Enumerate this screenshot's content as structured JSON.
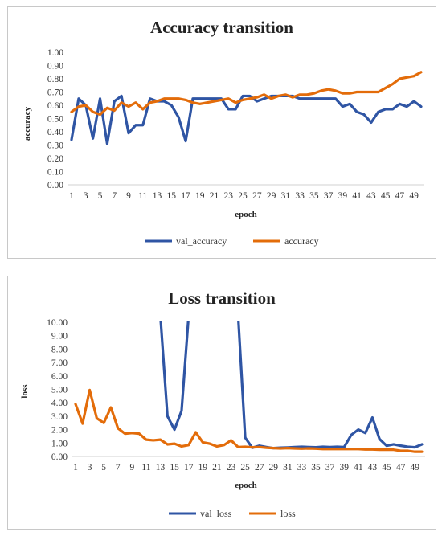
{
  "chart_data": [
    {
      "type": "line",
      "title": "Accuracy transition",
      "xlabel": "epoch",
      "ylabel": "accuracy",
      "ylim": [
        0,
        1
      ],
      "yticks": [
        "0.00",
        "0.10",
        "0.20",
        "0.30",
        "0.40",
        "0.50",
        "0.60",
        "0.70",
        "0.80",
        "0.90",
        "1.00"
      ],
      "xticks": [
        1,
        3,
        5,
        7,
        9,
        11,
        13,
        15,
        17,
        19,
        21,
        23,
        25,
        27,
        29,
        31,
        33,
        35,
        37,
        39,
        41,
        43,
        45,
        47,
        49
      ],
      "x": [
        1,
        2,
        3,
        4,
        5,
        6,
        7,
        8,
        9,
        10,
        11,
        12,
        13,
        14,
        15,
        16,
        17,
        18,
        19,
        20,
        21,
        22,
        23,
        24,
        25,
        26,
        27,
        28,
        29,
        30,
        31,
        32,
        33,
        34,
        35,
        36,
        37,
        38,
        39,
        40,
        41,
        42,
        43,
        44,
        45,
        46,
        47,
        48,
        49,
        50
      ],
      "legend_position": "bottom",
      "grid": false,
      "series": [
        {
          "name": "val_accuracy",
          "color": "#2f55a4",
          "values": [
            0.34,
            0.65,
            0.6,
            0.35,
            0.65,
            0.31,
            0.63,
            0.67,
            0.39,
            0.45,
            0.45,
            0.65,
            0.63,
            0.63,
            0.6,
            0.51,
            0.33,
            0.65,
            0.65,
            0.65,
            0.65,
            0.65,
            0.57,
            0.57,
            0.67,
            0.67,
            0.63,
            0.65,
            0.67,
            0.67,
            0.67,
            0.67,
            0.65,
            0.65,
            0.65,
            0.65,
            0.65,
            0.65,
            0.59,
            0.61,
            0.55,
            0.53,
            0.47,
            0.55,
            0.57,
            0.57,
            0.61,
            0.59,
            0.63,
            0.59
          ]
        },
        {
          "name": "accuracy",
          "color": "#e36c0a",
          "values": [
            0.55,
            0.59,
            0.6,
            0.55,
            0.53,
            0.58,
            0.56,
            0.62,
            0.59,
            0.62,
            0.57,
            0.62,
            0.63,
            0.65,
            0.65,
            0.65,
            0.64,
            0.62,
            0.61,
            0.62,
            0.63,
            0.64,
            0.65,
            0.62,
            0.64,
            0.65,
            0.66,
            0.68,
            0.65,
            0.67,
            0.68,
            0.66,
            0.68,
            0.68,
            0.69,
            0.71,
            0.72,
            0.71,
            0.69,
            0.69,
            0.7,
            0.7,
            0.7,
            0.7,
            0.73,
            0.76,
            0.8,
            0.81,
            0.82,
            0.85
          ]
        }
      ]
    },
    {
      "type": "line",
      "title": "Loss transition",
      "xlabel": "epoch",
      "ylabel": "loss",
      "ylim": [
        0,
        10
      ],
      "yticks": [
        "0.00",
        "1.00",
        "2.00",
        "3.00",
        "4.00",
        "5.00",
        "6.00",
        "7.00",
        "8.00",
        "9.00",
        "10.00"
      ],
      "xticks": [
        1,
        3,
        5,
        7,
        9,
        11,
        13,
        15,
        17,
        19,
        21,
        23,
        25,
        27,
        29,
        31,
        33,
        35,
        37,
        39,
        41,
        43,
        45,
        47,
        49
      ],
      "x": [
        1,
        2,
        3,
        4,
        5,
        6,
        7,
        8,
        9,
        10,
        11,
        12,
        13,
        14,
        15,
        16,
        17,
        18,
        19,
        20,
        21,
        22,
        23,
        24,
        25,
        26,
        27,
        28,
        29,
        30,
        31,
        32,
        33,
        34,
        35,
        36,
        37,
        38,
        39,
        40,
        41,
        42,
        43,
        44,
        45,
        46,
        47,
        48,
        49,
        50
      ],
      "legend_position": "bottom",
      "grid": false,
      "series": [
        {
          "name": "val_loss",
          "color": "#2f55a4",
          "values": [
            null,
            null,
            null,
            null,
            null,
            null,
            null,
            null,
            null,
            null,
            null,
            null,
            10.5,
            3.0,
            2.0,
            3.4,
            10.5,
            null,
            null,
            null,
            null,
            null,
            null,
            10.5,
            1.4,
            0.65,
            0.8,
            0.7,
            0.62,
            0.65,
            0.67,
            0.7,
            0.72,
            0.7,
            0.68,
            0.72,
            0.7,
            0.72,
            0.7,
            1.6,
            2.0,
            1.75,
            2.9,
            1.3,
            0.8,
            0.9,
            0.8,
            0.72,
            0.68,
            0.9
          ]
        },
        {
          "name": "loss",
          "color": "#e36c0a",
          "values": [
            3.9,
            2.45,
            4.95,
            2.85,
            2.5,
            3.65,
            2.1,
            1.7,
            1.75,
            1.7,
            1.25,
            1.2,
            1.25,
            0.9,
            0.95,
            0.75,
            0.85,
            1.8,
            1.05,
            0.95,
            0.75,
            0.85,
            1.2,
            0.7,
            0.72,
            0.68,
            0.7,
            0.65,
            0.62,
            0.6,
            0.62,
            0.6,
            0.58,
            0.6,
            0.58,
            0.55,
            0.56,
            0.55,
            0.55,
            0.55,
            0.55,
            0.52,
            0.52,
            0.5,
            0.5,
            0.5,
            0.42,
            0.42,
            0.35,
            0.35
          ]
        }
      ]
    }
  ]
}
